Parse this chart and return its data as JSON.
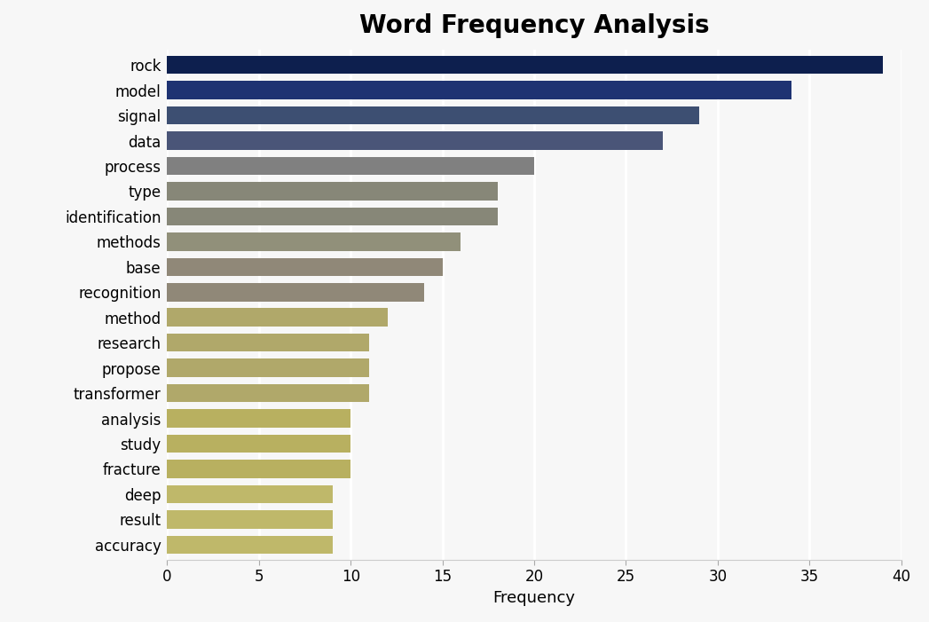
{
  "title": "Word Frequency Analysis",
  "xlabel": "Frequency",
  "categories": [
    "rock",
    "model",
    "signal",
    "data",
    "process",
    "type",
    "identification",
    "methods",
    "base",
    "recognition",
    "method",
    "research",
    "propose",
    "transformer",
    "analysis",
    "study",
    "fracture",
    "deep",
    "result",
    "accuracy"
  ],
  "values": [
    39,
    34,
    29,
    27,
    20,
    18,
    18,
    16,
    15,
    14,
    12,
    11,
    11,
    11,
    10,
    10,
    10,
    9,
    9,
    9
  ],
  "bar_colors": [
    "#0d1f4e",
    "#1e3272",
    "#3d4f72",
    "#4a5578",
    "#808080",
    "#878778",
    "#878778",
    "#91907a",
    "#908878",
    "#908878",
    "#b0a86a",
    "#b0a86a",
    "#b0a86a",
    "#b0a86a",
    "#b8b060",
    "#b8b060",
    "#b8b060",
    "#bfb86a",
    "#bfb86a",
    "#bfb86a"
  ],
  "xlim": [
    0,
    40
  ],
  "xticks": [
    0,
    5,
    10,
    15,
    20,
    25,
    30,
    35,
    40
  ],
  "background_color": "#f7f7f7",
  "plot_background_color": "#f7f7f7",
  "title_fontsize": 20,
  "axis_label_fontsize": 13,
  "tick_fontsize": 12,
  "bar_height": 0.72,
  "grid_color": "#ffffff",
  "grid_linewidth": 2.0
}
